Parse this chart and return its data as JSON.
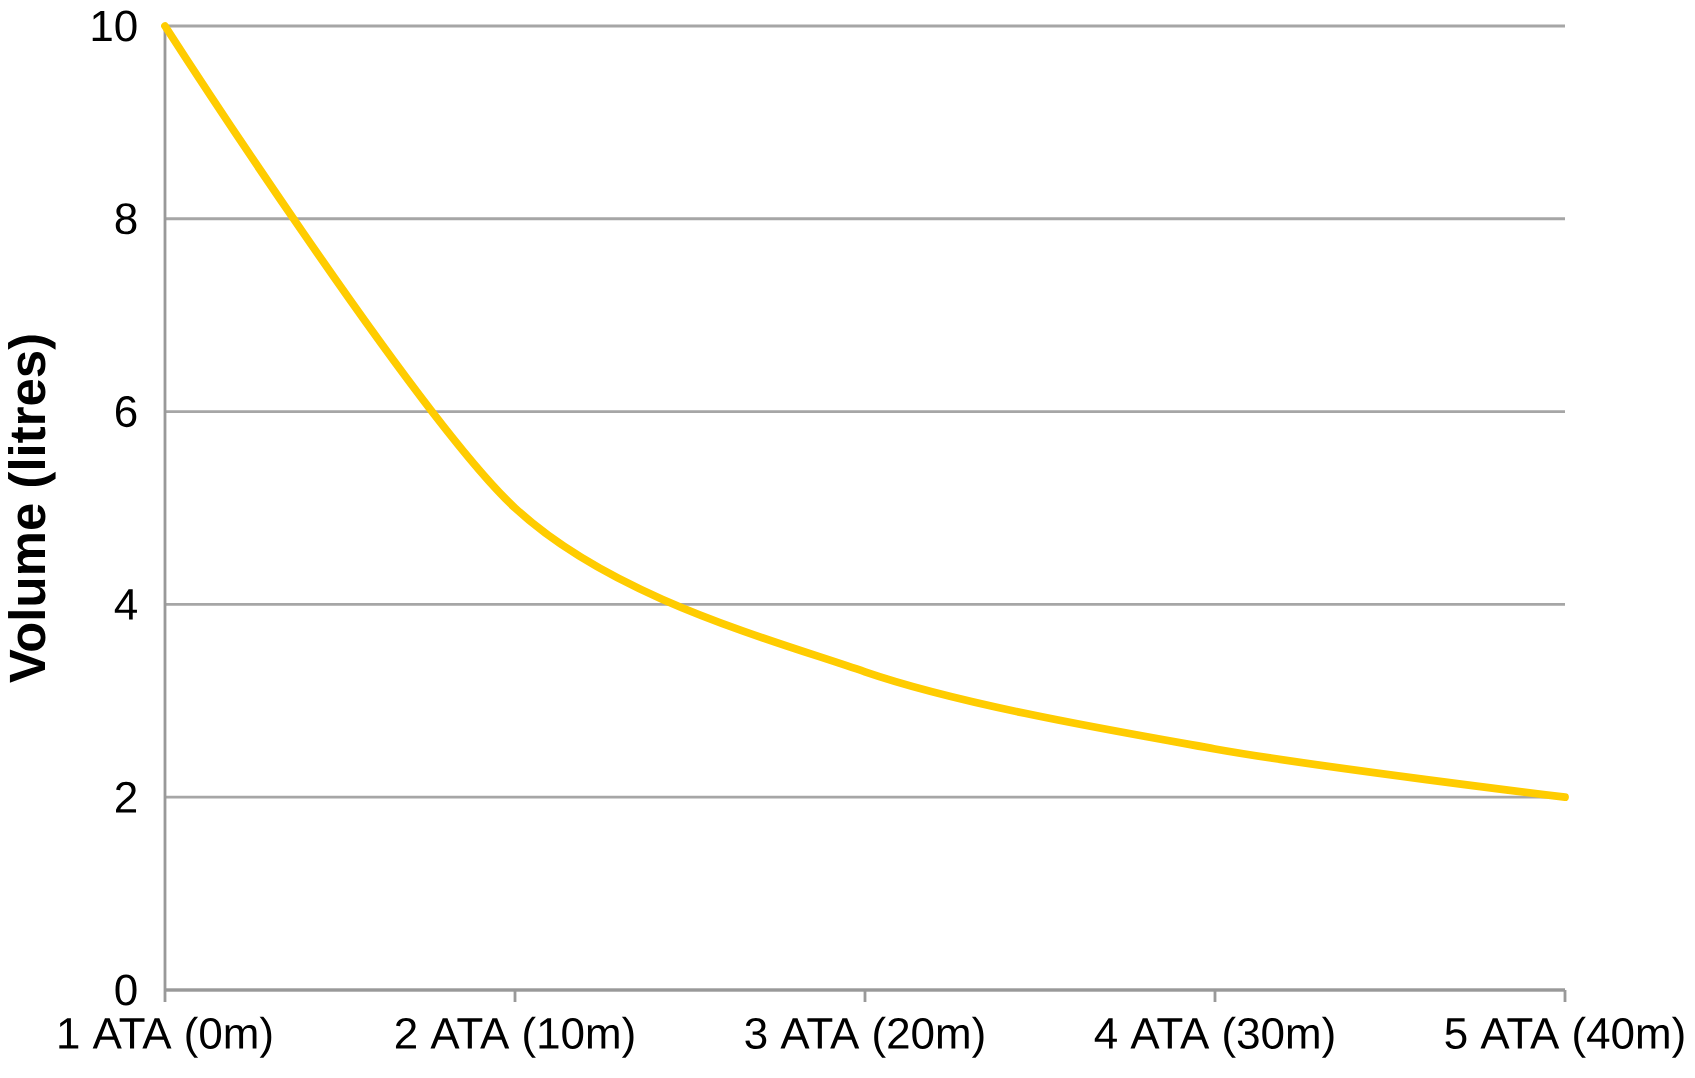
{
  "chart_data": {
    "type": "line",
    "ylabel": "Volume (litres)",
    "color": "#ffcc00",
    "categories": [
      "1 ATA (0m)",
      "2 ATA (10m)",
      "3 ATA (20m)",
      "4 ATA (30m)",
      "5 ATA (40m)"
    ],
    "values": [
      10,
      5,
      3.3,
      2.5,
      2
    ],
    "ylim": [
      0,
      10
    ],
    "yticks": [
      0,
      2,
      4,
      6,
      8,
      10
    ],
    "grid": "y"
  }
}
